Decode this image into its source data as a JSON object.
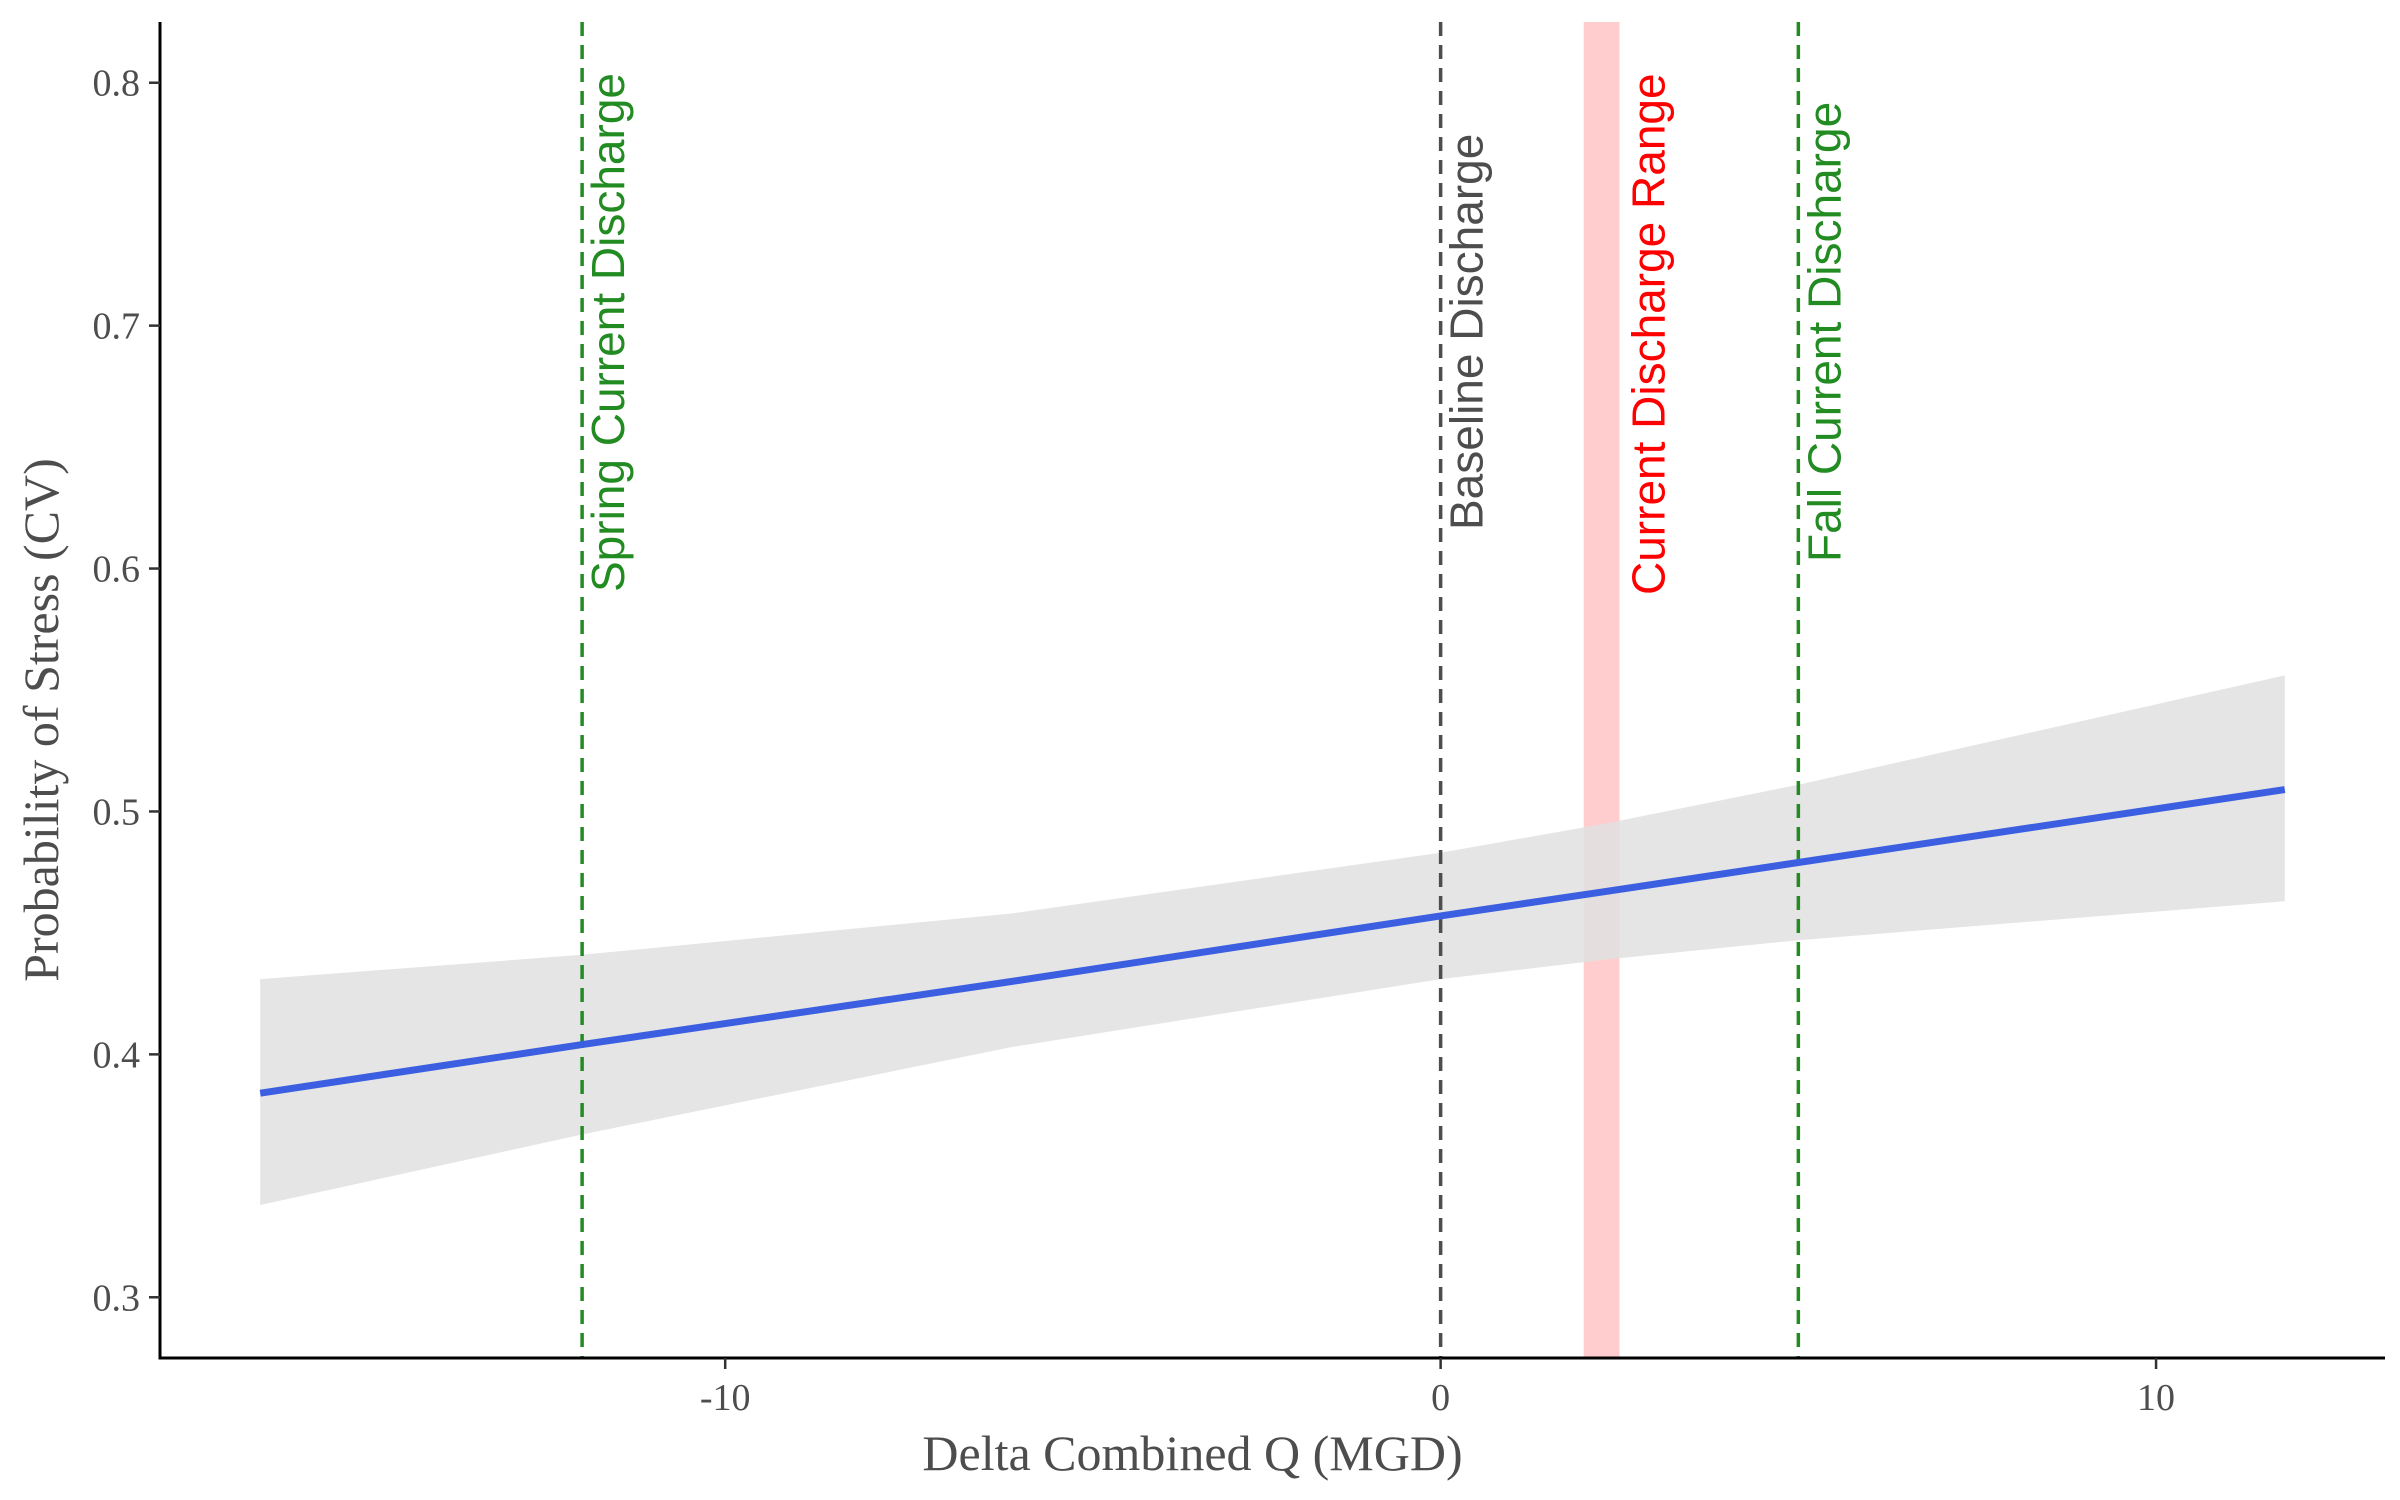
{
  "chart_data": {
    "type": "line",
    "xlabel": "Delta Combined Q (MGD)",
    "ylabel": "Probability of Stress (CV)",
    "xlim": [
      -17.9,
      13.2
    ],
    "ylim": [
      0.275,
      0.825
    ],
    "x_ticks": [
      -10,
      0,
      10
    ],
    "x_tick_labels": [
      "-10",
      "0",
      "10"
    ],
    "y_ticks": [
      0.3,
      0.4,
      0.5,
      0.6,
      0.7,
      0.8
    ],
    "y_tick_labels": [
      "0.3",
      "0.4",
      "0.5",
      "0.6",
      "0.7",
      "0.8"
    ],
    "grid": false,
    "series": [
      {
        "color": "#3b5fe0",
        "x": [
          -16.5,
          -12,
          -6,
          0,
          2.3,
          5,
          11.8
        ],
        "y": [
          0.384,
          0.404,
          0.43,
          0.457,
          0.467,
          0.479,
          0.509
        ],
        "ci_lower": [
          0.338,
          0.367,
          0.403,
          0.431,
          0.439,
          0.447,
          0.463
        ],
        "ci_upper": [
          0.431,
          0.441,
          0.458,
          0.483,
          0.495,
          0.511,
          0.556
        ],
        "ci_color": "#e0e0e0"
      }
    ],
    "annotations": [
      {
        "type": "vline",
        "x": -12,
        "label": "Spring Current Discharge",
        "color": "#228b22",
        "dashed": true
      },
      {
        "type": "vline",
        "x": 0,
        "label": "Baseline Discharge",
        "color": "#4d4d4d",
        "dashed": true
      },
      {
        "type": "vband",
        "x_start": 2.0,
        "x_end": 2.5,
        "label": "Current Discharge Range",
        "color": "#ff0000",
        "fill": "#ffcaca"
      },
      {
        "type": "vline",
        "x": 5,
        "label": "Fall Current Discharge",
        "color": "#228b22",
        "dashed": true
      }
    ]
  }
}
